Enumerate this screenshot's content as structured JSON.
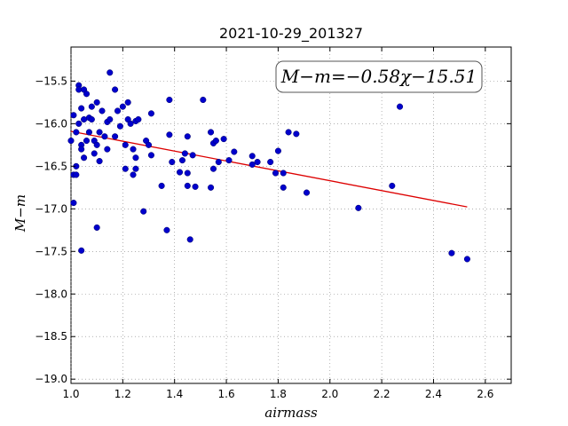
{
  "chart_data": {
    "type": "scatter",
    "title": "2021-10-29_201327",
    "xlabel": "airmass",
    "ylabel": "M−m",
    "xlim": [
      1.0,
      2.7
    ],
    "ylim": [
      -19.05,
      -15.1
    ],
    "x_ticks": [
      1.0,
      1.2,
      1.4,
      1.6,
      1.8,
      2.0,
      2.2,
      2.4,
      2.6
    ],
    "x_tick_labels": [
      "1.0",
      "1.2",
      "1.4",
      "1.6",
      "1.8",
      "2.0",
      "2.2",
      "2.4",
      "2.6"
    ],
    "y_ticks": [
      -15.5,
      -16.0,
      -16.5,
      -17.0,
      -17.5,
      -18.0,
      -18.5,
      -19.0
    ],
    "y_tick_labels": [
      "−15.5",
      "−16.0",
      "−16.5",
      "−17.0",
      "−17.5",
      "−18.0",
      "−18.5",
      "−19.0"
    ],
    "grid": true,
    "annotation": "M−m=−0.58χ−15.51",
    "colors": {
      "points": "#0000cc",
      "fit_line": "#dd0000"
    },
    "fit_line": {
      "slope": -0.58,
      "intercept": -15.51,
      "x_range": [
        1.0,
        2.53
      ]
    },
    "points": [
      [
        1.0,
        -16.2
      ],
      [
        1.01,
        -15.9
      ],
      [
        1.01,
        -16.93
      ],
      [
        1.01,
        -16.6
      ],
      [
        1.02,
        -16.1
      ],
      [
        1.02,
        -16.5
      ],
      [
        1.02,
        -16.6
      ],
      [
        1.03,
        -15.55
      ],
      [
        1.03,
        -15.6
      ],
      [
        1.03,
        -16.0
      ],
      [
        1.04,
        -15.82
      ],
      [
        1.04,
        -16.25
      ],
      [
        1.04,
        -16.3
      ],
      [
        1.04,
        -17.49
      ],
      [
        1.05,
        -15.6
      ],
      [
        1.05,
        -16.4
      ],
      [
        1.05,
        -15.95
      ],
      [
        1.06,
        -15.65
      ],
      [
        1.06,
        -16.2
      ],
      [
        1.07,
        -15.93
      ],
      [
        1.07,
        -16.1
      ],
      [
        1.08,
        -15.8
      ],
      [
        1.08,
        -15.95
      ],
      [
        1.09,
        -16.35
      ],
      [
        1.09,
        -16.2
      ],
      [
        1.1,
        -15.75
      ],
      [
        1.1,
        -16.25
      ],
      [
        1.1,
        -17.22
      ],
      [
        1.11,
        -16.44
      ],
      [
        1.11,
        -16.1
      ],
      [
        1.12,
        -15.85
      ],
      [
        1.13,
        -16.15
      ],
      [
        1.14,
        -16.3
      ],
      [
        1.14,
        -15.98
      ],
      [
        1.15,
        -15.4
      ],
      [
        1.15,
        -15.95
      ],
      [
        1.17,
        -15.6
      ],
      [
        1.17,
        -16.15
      ],
      [
        1.18,
        -15.85
      ],
      [
        1.19,
        -16.03
      ],
      [
        1.2,
        -15.8
      ],
      [
        1.21,
        -16.25
      ],
      [
        1.21,
        -16.53
      ],
      [
        1.22,
        -15.95
      ],
      [
        1.22,
        -15.75
      ],
      [
        1.23,
        -16.0
      ],
      [
        1.24,
        -16.3
      ],
      [
        1.24,
        -16.6
      ],
      [
        1.25,
        -16.4
      ],
      [
        1.25,
        -16.53
      ],
      [
        1.25,
        -15.97
      ],
      [
        1.26,
        -15.95
      ],
      [
        1.28,
        -17.03
      ],
      [
        1.29,
        -16.2
      ],
      [
        1.3,
        -16.25
      ],
      [
        1.31,
        -15.88
      ],
      [
        1.31,
        -16.37
      ],
      [
        1.35,
        -16.73
      ],
      [
        1.37,
        -17.25
      ],
      [
        1.38,
        -15.72
      ],
      [
        1.38,
        -16.13
      ],
      [
        1.39,
        -16.45
      ],
      [
        1.42,
        -16.57
      ],
      [
        1.43,
        -16.43
      ],
      [
        1.44,
        -16.35
      ],
      [
        1.45,
        -16.15
      ],
      [
        1.45,
        -16.58
      ],
      [
        1.45,
        -16.73
      ],
      [
        1.46,
        -17.36
      ],
      [
        1.47,
        -16.37
      ],
      [
        1.48,
        -16.74
      ],
      [
        1.51,
        -15.72
      ],
      [
        1.54,
        -16.1
      ],
      [
        1.54,
        -16.75
      ],
      [
        1.55,
        -16.23
      ],
      [
        1.55,
        -16.53
      ],
      [
        1.56,
        -16.2
      ],
      [
        1.57,
        -16.45
      ],
      [
        1.59,
        -16.18
      ],
      [
        1.61,
        -16.43
      ],
      [
        1.63,
        -16.33
      ],
      [
        1.7,
        -16.48
      ],
      [
        1.7,
        -16.38
      ],
      [
        1.72,
        -16.45
      ],
      [
        1.77,
        -16.45
      ],
      [
        1.79,
        -16.58
      ],
      [
        1.8,
        -16.32
      ],
      [
        1.82,
        -16.58
      ],
      [
        1.82,
        -16.75
      ],
      [
        1.84,
        -16.1
      ],
      [
        1.87,
        -16.12
      ],
      [
        1.91,
        -16.81
      ],
      [
        2.11,
        -16.99
      ],
      [
        2.24,
        -16.73
      ],
      [
        2.27,
        -15.8
      ],
      [
        2.47,
        -17.52
      ],
      [
        2.53,
        -17.59
      ]
    ]
  }
}
